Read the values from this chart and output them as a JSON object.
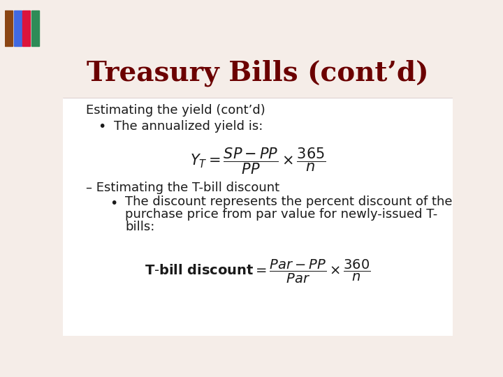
{
  "title": "Treasury Bills (cont’d)",
  "title_color": "#6B0000",
  "title_fontsize": 28,
  "bg_color": "#F5EDE8",
  "content_bg": "#FFFFFF",
  "text_color": "#1a1a1a",
  "header_line1": "Estimating the yield (cont’d)",
  "bullet1": "The annualized yield is:",
  "dash1": "Estimating the T-bill discount",
  "bullet2_line1": "The discount represents the percent discount of the",
  "bullet2_line2": "purchase price from par value for newly-issued T-",
  "bullet2_line3": "bills:",
  "line_color": "#ccbbbb"
}
